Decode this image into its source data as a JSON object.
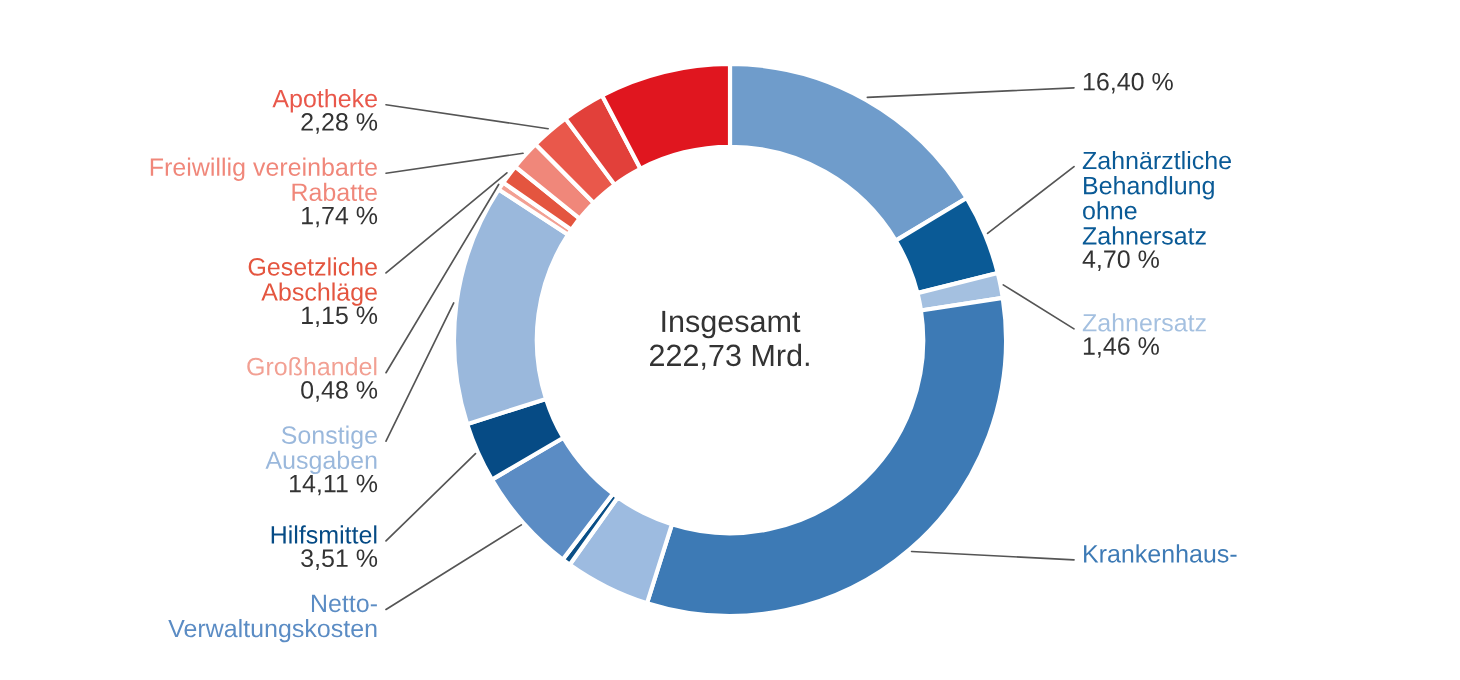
{
  "chart_data": {
    "type": "donut",
    "categories": [
      null,
      "Zahnärztliche\nBehandlung\nohne\nZahnersatz",
      "Zahnersatz",
      "Krankenhaus-",
      null,
      null,
      "Netto-\nVerwaltungskosten",
      "Hilfsmittel",
      "Sonstige\nAusgaben",
      "Großhandel",
      "Gesetzliche\nAbschläge",
      "Freiwillig vereinbarte\nRabatte",
      "Apotheke",
      null,
      null
    ],
    "values": [
      16.4,
      4.7,
      1.46,
      32.3,
      5.0,
      0.5,
      6.2,
      3.51,
      14.11,
      0.48,
      1.15,
      1.74,
      2.28,
      2.5,
      7.67
    ],
    "value_labels": [
      "16,40 %",
      "4,70 %",
      "1,46 %",
      null,
      null,
      null,
      null,
      "3,51 %",
      "14,11 %",
      "0,48 %",
      "1,15 %",
      "1,74 %",
      "2,28 %",
      null,
      null
    ],
    "colors": [
      "#6f9ccb",
      "#0a5a96",
      "#a4c0e0",
      "#3d7ab5",
      "#9dbbe0",
      "#0a4f87",
      "#5b8cc4",
      "#064b85",
      "#9ab8dc",
      "#f2a093",
      "#e4553f",
      "#f0877a",
      "#e9584b",
      "#e2403a",
      "#e0161f"
    ],
    "annotations": [
      "Insgesamt",
      "222,73 Mrd."
    ]
  }
}
